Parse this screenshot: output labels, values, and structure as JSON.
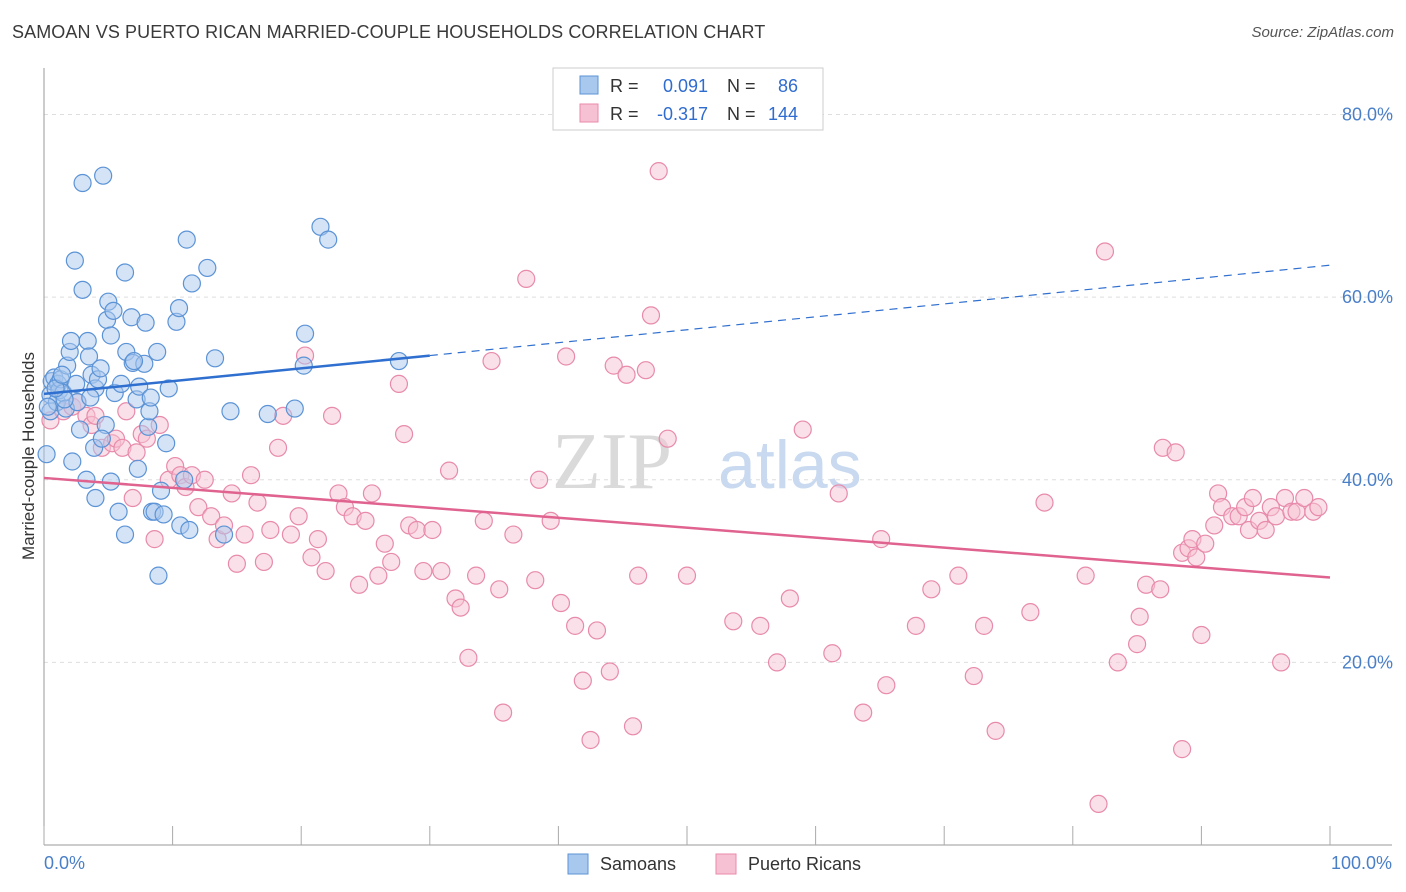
{
  "title": "SAMOAN VS PUERTO RICAN MARRIED-COUPLE HOUSEHOLDS CORRELATION CHART",
  "source": "Source: ZipAtlas.com",
  "watermark": {
    "zip": "ZIP",
    "atlas": "atlas"
  },
  "colors": {
    "samoans_fill": "#a9c8ee",
    "samoans_stroke": "#5b93d6",
    "samoans_line": "#2f6fcf",
    "pr_fill": "#f6c1d2",
    "pr_stroke": "#e88aab",
    "pr_line": "#e0628f",
    "accent_text": "#4a7fc8"
  },
  "legend": {
    "rows": [
      {
        "r_label": "R =",
        "r_value": "0.091",
        "n_label": "N =",
        "n_value": "86"
      },
      {
        "r_label": "R =",
        "r_value": "-0.317",
        "n_label": "N =",
        "n_value": "144"
      }
    ]
  },
  "bottom_legend": {
    "samoans": "Samoans",
    "puerto_ricans": "Puerto Ricans"
  },
  "chart_data": {
    "type": "scatter",
    "ylabel": "Married-couple Households",
    "xlabel": "",
    "xlim": [
      0,
      100
    ],
    "ylim": [
      0,
      84
    ],
    "x_tick_labels": [
      "0.0%",
      "100.0%"
    ],
    "y_ticks": [
      20,
      40,
      60,
      80
    ],
    "y_tick_labels": [
      "20.0%",
      "40.0%",
      "60.0%",
      "80.0%"
    ],
    "grid": true,
    "legend_position": "top-center",
    "series": [
      {
        "name": "Samoans",
        "trend": {
          "x0": 0,
          "y0": 49.4,
          "x1": 30,
          "y1": 53.6,
          "dashed_to_x": 100,
          "dashed_to_y": 63.5
        },
        "points": [
          [
            0.5,
            47.5
          ],
          [
            0.5,
            49.3
          ],
          [
            0.6,
            50.8
          ],
          [
            0.8,
            51.2
          ],
          [
            1.0,
            48.5
          ],
          [
            1.1,
            50.5
          ],
          [
            1.2,
            49.8
          ],
          [
            1.3,
            51.0
          ],
          [
            1.5,
            49.5
          ],
          [
            1.7,
            47.8
          ],
          [
            1.8,
            52.5
          ],
          [
            2.0,
            54.0
          ],
          [
            2.1,
            55.2
          ],
          [
            2.2,
            42.0
          ],
          [
            2.4,
            64.0
          ],
          [
            2.6,
            48.5
          ],
          [
            2.8,
            45.5
          ],
          [
            3.0,
            60.8
          ],
          [
            3.0,
            72.5
          ],
          [
            3.3,
            40.0
          ],
          [
            3.4,
            55.2
          ],
          [
            3.5,
            53.5
          ],
          [
            3.7,
            51.5
          ],
          [
            3.9,
            43.5
          ],
          [
            4.0,
            38.0
          ],
          [
            4.0,
            50.0
          ],
          [
            4.2,
            51.0
          ],
          [
            4.4,
            52.2
          ],
          [
            4.6,
            73.3
          ],
          [
            4.8,
            46.0
          ],
          [
            5.0,
            59.5
          ],
          [
            4.9,
            57.5
          ],
          [
            5.2,
            55.8
          ],
          [
            5.4,
            58.5
          ],
          [
            5.2,
            39.8
          ],
          [
            5.8,
            36.5
          ],
          [
            6.3,
            34.0
          ],
          [
            6.4,
            54.0
          ],
          [
            6.3,
            62.7
          ],
          [
            6.8,
            57.8
          ],
          [
            6.9,
            52.8
          ],
          [
            7.2,
            48.8
          ],
          [
            7.3,
            41.2
          ],
          [
            7.4,
            50.2
          ],
          [
            7.8,
            52.7
          ],
          [
            7.9,
            57.2
          ],
          [
            8.1,
            45.8
          ],
          [
            8.2,
            47.5
          ],
          [
            8.3,
            49.0
          ],
          [
            8.4,
            36.5
          ],
          [
            8.6,
            36.5
          ],
          [
            8.8,
            54.0
          ],
          [
            8.9,
            29.5
          ],
          [
            9.1,
            38.8
          ],
          [
            9.3,
            36.2
          ],
          [
            9.7,
            50.0
          ],
          [
            10.3,
            57.3
          ],
          [
            10.5,
            58.8
          ],
          [
            10.6,
            35.0
          ],
          [
            10.9,
            40.0
          ],
          [
            11.1,
            66.3
          ],
          [
            11.3,
            34.5
          ],
          [
            11.5,
            61.5
          ],
          [
            12.7,
            63.2
          ],
          [
            13.3,
            53.3
          ],
          [
            14.0,
            34.0
          ],
          [
            14.5,
            47.5
          ],
          [
            17.4,
            47.2
          ],
          [
            19.5,
            47.8
          ],
          [
            20.2,
            52.5
          ],
          [
            20.3,
            56.0
          ],
          [
            21.5,
            67.7
          ],
          [
            22.1,
            66.3
          ],
          [
            27.6,
            53.0
          ],
          [
            0.2,
            42.8
          ],
          [
            0.3,
            48.0
          ],
          [
            1.6,
            48.8
          ],
          [
            2.5,
            50.5
          ],
          [
            3.6,
            49.0
          ],
          [
            4.5,
            44.5
          ],
          [
            5.5,
            49.5
          ],
          [
            6.0,
            50.5
          ],
          [
            7.0,
            53.0
          ],
          [
            9.5,
            44.0
          ],
          [
            0.9,
            50.0
          ],
          [
            1.4,
            51.5
          ]
        ]
      },
      {
        "name": "Puerto Ricans",
        "trend": {
          "x0": 0,
          "y0": 40.2,
          "x1": 100,
          "y1": 29.3
        },
        "points": [
          [
            0.5,
            46.5
          ],
          [
            1.5,
            47.5
          ],
          [
            2.2,
            48.0
          ],
          [
            2.6,
            48.5
          ],
          [
            3.3,
            47.0
          ],
          [
            3.7,
            46.0
          ],
          [
            4.0,
            47.0
          ],
          [
            4.5,
            43.5
          ],
          [
            5.3,
            44.0
          ],
          [
            5.6,
            44.5
          ],
          [
            6.1,
            43.5
          ],
          [
            6.4,
            47.5
          ],
          [
            6.9,
            38.0
          ],
          [
            7.2,
            43.0
          ],
          [
            7.6,
            45.0
          ],
          [
            8.0,
            44.5
          ],
          [
            8.6,
            33.5
          ],
          [
            9.0,
            46.0
          ],
          [
            9.7,
            40.0
          ],
          [
            10.2,
            41.5
          ],
          [
            10.6,
            40.5
          ],
          [
            11.0,
            39.2
          ],
          [
            11.5,
            40.5
          ],
          [
            12.0,
            37.0
          ],
          [
            12.5,
            40.0
          ],
          [
            13.0,
            36.0
          ],
          [
            13.5,
            33.5
          ],
          [
            14.0,
            35.0
          ],
          [
            14.6,
            38.5
          ],
          [
            15.0,
            30.8
          ],
          [
            15.6,
            34.0
          ],
          [
            16.1,
            40.5
          ],
          [
            16.6,
            37.5
          ],
          [
            17.1,
            31.0
          ],
          [
            17.6,
            34.5
          ],
          [
            18.2,
            43.5
          ],
          [
            18.6,
            47.0
          ],
          [
            19.2,
            34.0
          ],
          [
            19.8,
            36.0
          ],
          [
            20.3,
            53.6
          ],
          [
            20.8,
            31.5
          ],
          [
            21.3,
            33.5
          ],
          [
            21.9,
            30.0
          ],
          [
            22.4,
            47.0
          ],
          [
            22.9,
            38.5
          ],
          [
            23.4,
            37.0
          ],
          [
            24.0,
            36.0
          ],
          [
            24.5,
            28.5
          ],
          [
            25.0,
            35.5
          ],
          [
            25.5,
            38.5
          ],
          [
            26.0,
            29.5
          ],
          [
            26.5,
            33.0
          ],
          [
            27.0,
            31.0
          ],
          [
            27.6,
            50.5
          ],
          [
            28.0,
            45.0
          ],
          [
            28.4,
            35.0
          ],
          [
            29.0,
            34.5
          ],
          [
            29.5,
            30.0
          ],
          [
            30.2,
            34.5
          ],
          [
            30.9,
            30.0
          ],
          [
            31.5,
            41.0
          ],
          [
            32.0,
            27.0
          ],
          [
            32.4,
            26.0
          ],
          [
            33.0,
            20.5
          ],
          [
            33.6,
            29.5
          ],
          [
            34.2,
            35.5
          ],
          [
            34.8,
            53.0
          ],
          [
            35.4,
            28.0
          ],
          [
            35.7,
            14.5
          ],
          [
            36.5,
            34.0
          ],
          [
            37.5,
            62.0
          ],
          [
            38.2,
            29.0
          ],
          [
            38.5,
            40.0
          ],
          [
            39.4,
            35.5
          ],
          [
            40.2,
            26.5
          ],
          [
            40.6,
            53.5
          ],
          [
            41.3,
            24.0
          ],
          [
            41.9,
            18.0
          ],
          [
            42.5,
            11.5
          ],
          [
            43.0,
            23.5
          ],
          [
            44.0,
            19.0
          ],
          [
            44.3,
            52.5
          ],
          [
            45.3,
            51.5
          ],
          [
            45.8,
            13.0
          ],
          [
            46.2,
            29.5
          ],
          [
            46.8,
            52.0
          ],
          [
            47.2,
            58.0
          ],
          [
            47.8,
            73.8
          ],
          [
            48.5,
            44.5
          ],
          [
            50.0,
            29.5
          ],
          [
            53.6,
            24.5
          ],
          [
            55.7,
            24.0
          ],
          [
            57.0,
            20.0
          ],
          [
            58.0,
            27.0
          ],
          [
            59.0,
            45.5
          ],
          [
            61.3,
            21.0
          ],
          [
            61.8,
            38.5
          ],
          [
            63.7,
            14.5
          ],
          [
            65.1,
            33.5
          ],
          [
            65.5,
            17.5
          ],
          [
            67.8,
            24.0
          ],
          [
            69.0,
            28.0
          ],
          [
            71.1,
            29.5
          ],
          [
            72.3,
            18.5
          ],
          [
            73.1,
            24.0
          ],
          [
            74.0,
            12.5
          ],
          [
            76.7,
            25.5
          ],
          [
            77.8,
            37.5
          ],
          [
            81.0,
            29.5
          ],
          [
            82.0,
            4.5
          ],
          [
            82.5,
            65.0
          ],
          [
            83.5,
            20.0
          ],
          [
            85.0,
            22.0
          ],
          [
            85.2,
            25.0
          ],
          [
            85.7,
            28.5
          ],
          [
            86.8,
            28.0
          ],
          [
            87.0,
            43.5
          ],
          [
            88.0,
            43.0
          ],
          [
            88.5,
            32.0
          ],
          [
            88.5,
            10.5
          ],
          [
            89.0,
            32.5
          ],
          [
            89.3,
            33.5
          ],
          [
            89.6,
            31.5
          ],
          [
            90.0,
            23.0
          ],
          [
            90.3,
            33.0
          ],
          [
            91.0,
            35.0
          ],
          [
            91.3,
            38.5
          ],
          [
            91.6,
            37.0
          ],
          [
            92.4,
            36.0
          ],
          [
            92.9,
            36.0
          ],
          [
            93.4,
            37.0
          ],
          [
            93.7,
            34.5
          ],
          [
            94.0,
            38.0
          ],
          [
            94.5,
            35.5
          ],
          [
            95.0,
            34.5
          ],
          [
            95.4,
            37.0
          ],
          [
            95.8,
            36.0
          ],
          [
            96.2,
            20.0
          ],
          [
            96.5,
            38.0
          ],
          [
            97.0,
            36.5
          ],
          [
            97.4,
            36.5
          ],
          [
            98.0,
            38.0
          ],
          [
            98.7,
            36.5
          ],
          [
            99.1,
            37.0
          ]
        ]
      }
    ]
  }
}
